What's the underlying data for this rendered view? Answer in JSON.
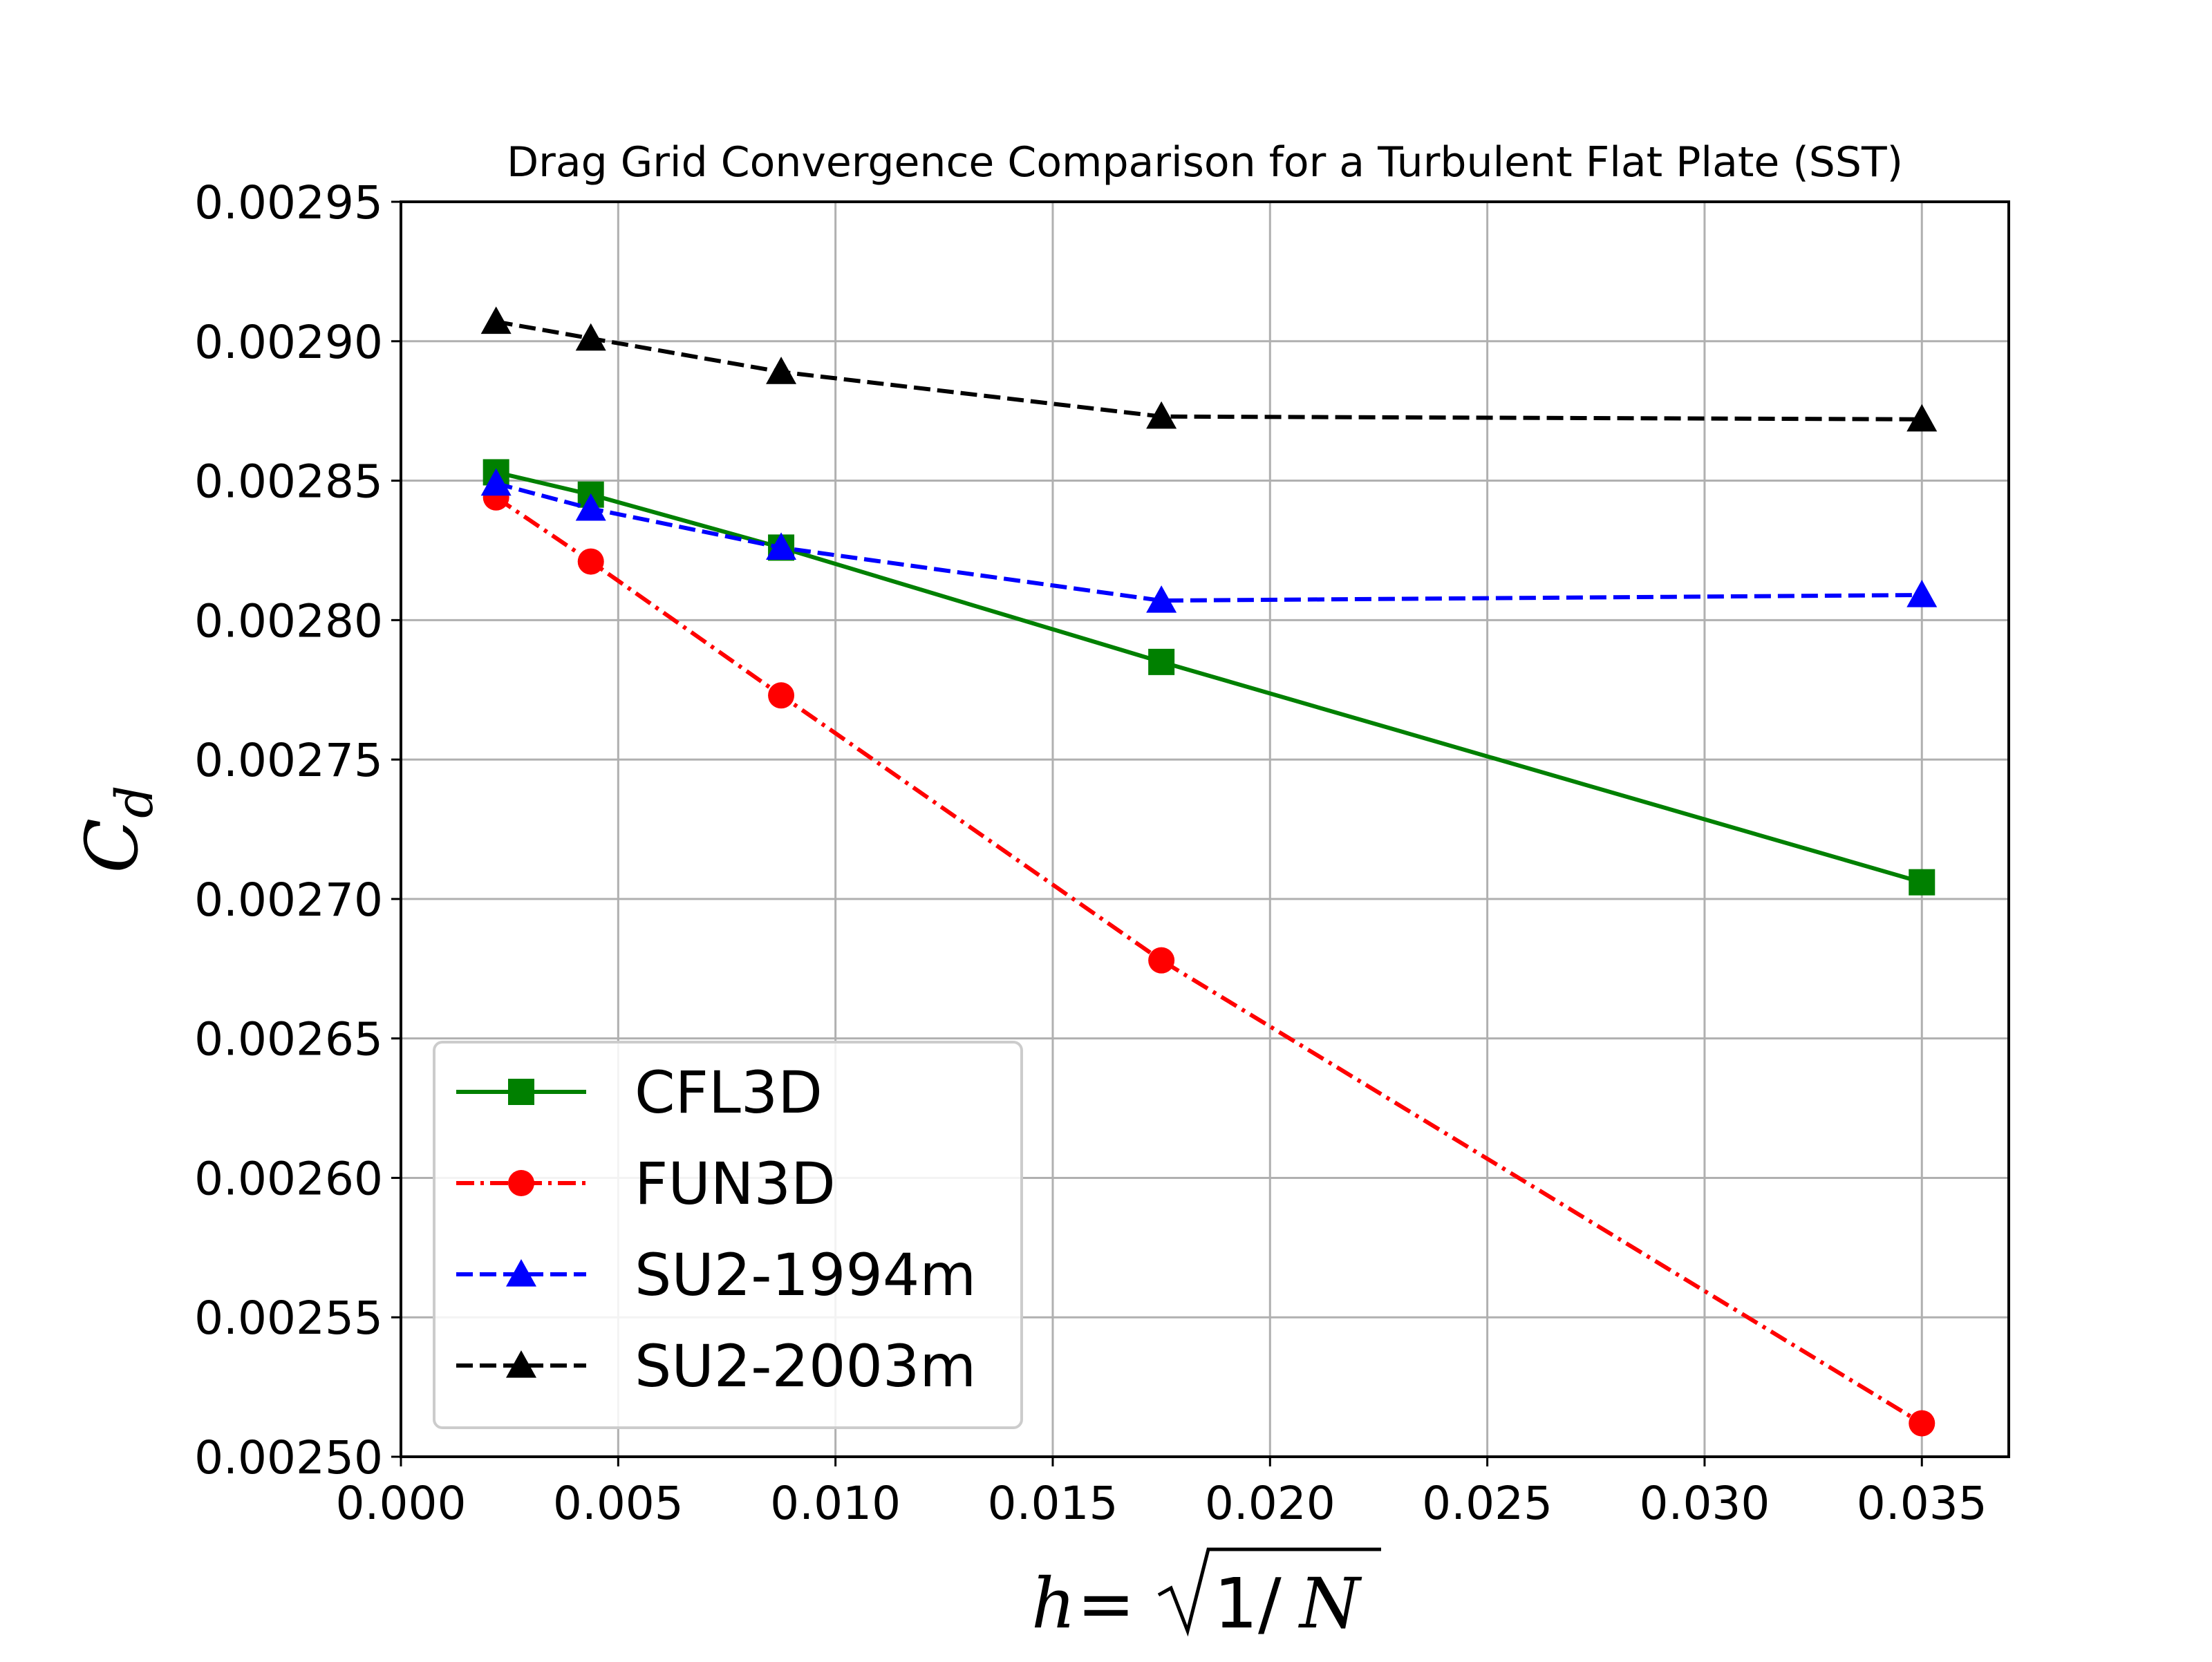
{
  "chart_data": {
    "type": "line",
    "title": "Drag Grid Convergence Comparison for a Turbulent Flat Plate (SST)",
    "xlabel": "h = √1/N",
    "ylabel": "C_d",
    "xlabel_parts": {
      "h": "h",
      "eq": "=",
      "sqrt": "√",
      "num": "1",
      "slash": "/",
      "N": "N"
    },
    "ylabel_parts": {
      "main": "C",
      "sub": "d"
    },
    "xlim": [
      0.0,
      0.037
    ],
    "ylim": [
      0.0025,
      0.00295
    ],
    "xticks": [
      0.0,
      0.005,
      0.01,
      0.015,
      0.02,
      0.025,
      0.03,
      0.035
    ],
    "xtick_labels": [
      "0.000",
      "0.005",
      "0.010",
      "0.015",
      "0.020",
      "0.025",
      "0.030",
      "0.035"
    ],
    "yticks": [
      0.0025,
      0.00255,
      0.0026,
      0.00265,
      0.0027,
      0.00275,
      0.0028,
      0.00285,
      0.0029,
      0.00295
    ],
    "ytick_labels": [
      "0.00250",
      "0.00255",
      "0.00260",
      "0.00265",
      "0.00270",
      "0.00275",
      "0.00280",
      "0.00285",
      "0.00290",
      "0.00295"
    ],
    "grid": true,
    "legend_position": "lower-left",
    "series": [
      {
        "name": "CFL3D",
        "color": "#008000",
        "dash": "solid",
        "marker": "square",
        "x": [
          0.00219,
          0.00437,
          0.00875,
          0.0175,
          0.035
        ],
        "y": [
          0.002853,
          0.002845,
          0.002826,
          0.002785,
          0.002706
        ]
      },
      {
        "name": "FUN3D",
        "color": "#ff0000",
        "dash": "dashdot",
        "marker": "circle",
        "x": [
          0.00219,
          0.00437,
          0.00875,
          0.0175,
          0.035
        ],
        "y": [
          0.002844,
          0.002821,
          0.002773,
          0.002678,
          0.002512
        ]
      },
      {
        "name": "SU2-1994m",
        "color": "#0000ff",
        "dash": "dashed",
        "marker": "triangle",
        "x": [
          0.00219,
          0.00437,
          0.00875,
          0.0175,
          0.035
        ],
        "y": [
          0.002849,
          0.00284,
          0.002826,
          0.002807,
          0.002809
        ]
      },
      {
        "name": "SU2-2003m",
        "color": "#000000",
        "dash": "dashed",
        "marker": "triangle",
        "x": [
          0.00219,
          0.00437,
          0.00875,
          0.0175,
          0.035
        ],
        "y": [
          0.002907,
          0.002901,
          0.002889,
          0.002873,
          0.002872
        ]
      }
    ]
  }
}
